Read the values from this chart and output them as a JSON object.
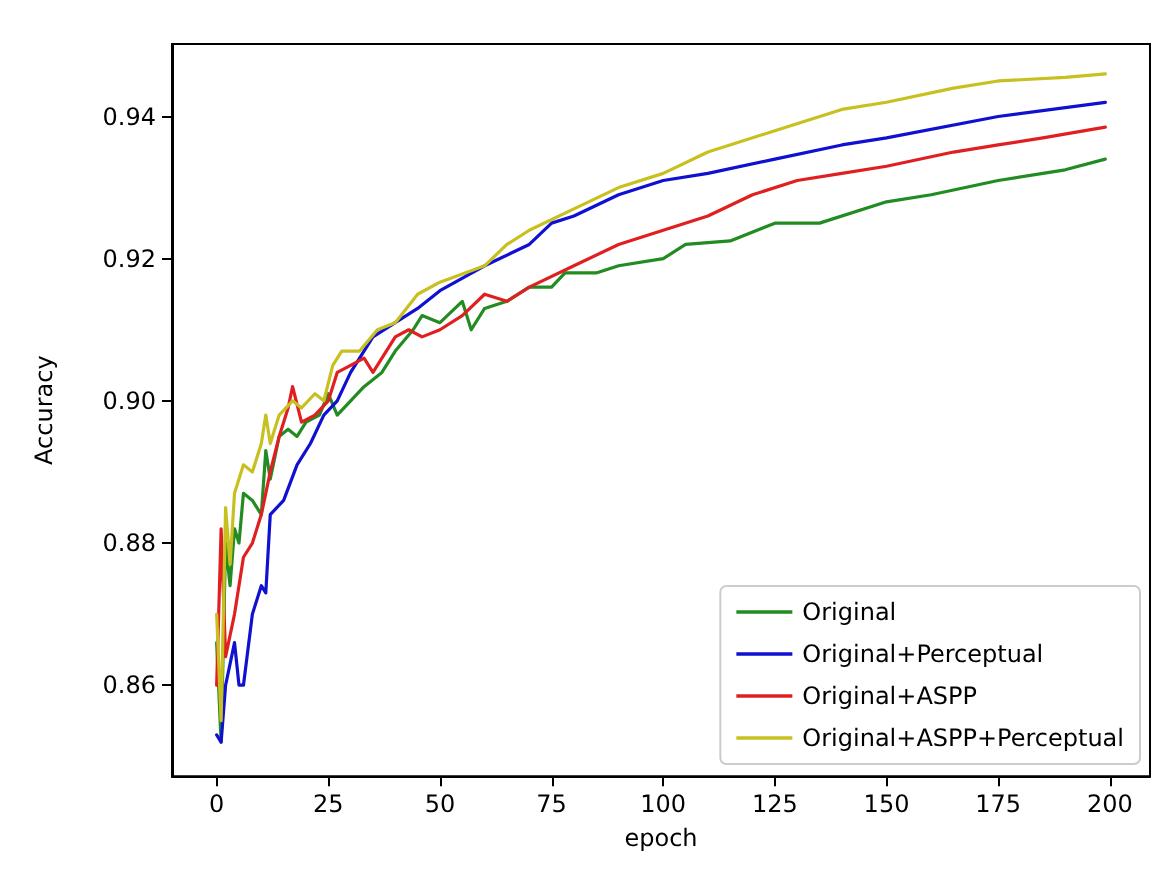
{
  "chart_data": {
    "type": "line",
    "xlabel": "epoch",
    "ylabel": "Accuracy",
    "xlim": [
      -10,
      209
    ],
    "ylim": [
      0.8472,
      0.9502
    ],
    "xticks": [
      0,
      25,
      50,
      75,
      100,
      125,
      150,
      175,
      200
    ],
    "yticks": [
      0.86,
      0.88,
      {
        "value": 0.9,
        "label": "0.90"
      },
      0.92,
      0.94
    ],
    "grid": false,
    "legend": "bottom right",
    "marker": "none",
    "line_style": "solid",
    "series": [
      {
        "name": "Original",
        "color": "#228b22",
        "x": [
          0,
          1,
          2,
          3,
          4,
          5,
          6,
          8,
          10,
          11,
          12,
          14,
          16,
          18,
          20,
          23,
          25,
          27,
          30,
          33,
          37,
          40,
          44,
          46,
          50,
          55,
          57,
          60,
          65,
          70,
          75,
          78,
          85,
          90,
          100,
          105,
          115,
          125,
          135,
          150,
          160,
          175,
          190,
          199
        ],
        "values": [
          0.866,
          0.852,
          0.88,
          0.874,
          0.882,
          0.88,
          0.887,
          0.886,
          0.884,
          0.893,
          0.889,
          0.895,
          0.896,
          0.895,
          0.897,
          0.898,
          0.901,
          0.898,
          0.9,
          0.902,
          0.904,
          0.907,
          0.91,
          0.912,
          0.911,
          0.914,
          0.91,
          0.913,
          0.914,
          0.916,
          0.916,
          0.918,
          0.918,
          0.919,
          0.92,
          0.922,
          0.9225,
          0.925,
          0.925,
          0.928,
          0.929,
          0.931,
          0.9325,
          0.934
        ]
      },
      {
        "name": "Original+Perceptual",
        "color": "#1010d0",
        "x": [
          0,
          1,
          2,
          4,
          5,
          6,
          8,
          10,
          11,
          12,
          15,
          18,
          21,
          24,
          27,
          30,
          35,
          40,
          45,
          50,
          60,
          70,
          75,
          80,
          90,
          100,
          110,
          125,
          140,
          150,
          175,
          199
        ],
        "values": [
          0.853,
          0.852,
          0.86,
          0.866,
          0.86,
          0.86,
          0.87,
          0.874,
          0.873,
          0.884,
          0.886,
          0.891,
          0.894,
          0.898,
          0.9,
          0.904,
          0.909,
          0.911,
          0.913,
          0.9155,
          0.919,
          0.922,
          0.925,
          0.926,
          0.929,
          0.931,
          0.932,
          0.934,
          0.936,
          0.937,
          0.94,
          0.942
        ]
      },
      {
        "name": "Original+ASPP",
        "color": "#e02020",
        "x": [
          0,
          1,
          2,
          4,
          6,
          8,
          10,
          12,
          14,
          16,
          17,
          19,
          22,
          25,
          27,
          30,
          33,
          35,
          40,
          43,
          46,
          50,
          55,
          60,
          65,
          70,
          80,
          90,
          100,
          110,
          120,
          130,
          140,
          150,
          165,
          175,
          185,
          199
        ],
        "values": [
          0.86,
          0.882,
          0.864,
          0.87,
          0.878,
          0.88,
          0.884,
          0.89,
          0.895,
          0.899,
          0.902,
          0.897,
          0.898,
          0.9,
          0.904,
          0.905,
          0.906,
          0.904,
          0.909,
          0.91,
          0.909,
          0.91,
          0.912,
          0.915,
          0.914,
          0.916,
          0.919,
          0.922,
          0.924,
          0.926,
          0.929,
          0.931,
          0.932,
          0.933,
          0.935,
          0.936,
          0.937,
          0.9385
        ]
      },
      {
        "name": "Original+ASPP+Perceptual",
        "color": "#c8c020",
        "x": [
          0,
          1,
          2,
          3,
          4,
          6,
          8,
          10,
          11,
          12,
          14,
          17,
          19,
          22,
          24,
          26,
          28,
          32,
          36,
          40,
          45,
          50,
          60,
          65,
          70,
          80,
          90,
          100,
          110,
          125,
          140,
          150,
          165,
          175,
          190,
          199
        ],
        "values": [
          0.87,
          0.855,
          0.885,
          0.877,
          0.887,
          0.891,
          0.89,
          0.894,
          0.898,
          0.894,
          0.898,
          0.9,
          0.899,
          0.901,
          0.9,
          0.905,
          0.907,
          0.907,
          0.91,
          0.911,
          0.915,
          0.9167,
          0.919,
          0.922,
          0.924,
          0.927,
          0.93,
          0.932,
          0.935,
          0.938,
          0.941,
          0.942,
          0.944,
          0.945,
          0.9455,
          0.946
        ]
      }
    ]
  }
}
